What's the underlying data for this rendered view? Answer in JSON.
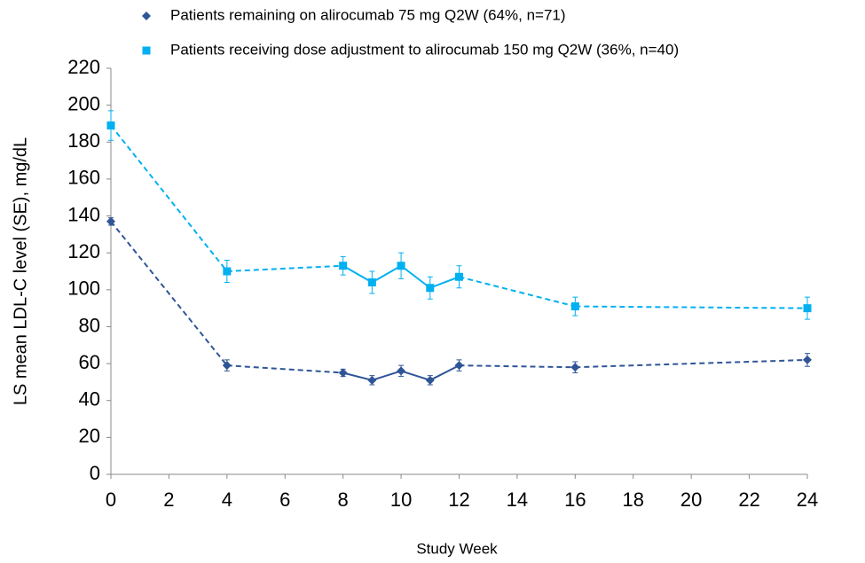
{
  "chart_data": {
    "type": "line",
    "legend": [
      {
        "name": "Patients remaining on alirocumab 75 mg Q2W (64%, n=71)"
      },
      {
        "name": "Patients receiving dose adjustment to alirocumab 150 mg Q2W (36%, n=40)"
      }
    ],
    "x": [
      0,
      4,
      8,
      9,
      10,
      11,
      12,
      16,
      24
    ],
    "series": [
      {
        "name": "Patients remaining on alirocumab 75 mg Q2W (64%, n=71)",
        "color": "#2f5597",
        "marker": "diamond",
        "values": [
          137,
          59,
          55,
          51,
          56,
          51,
          59,
          58,
          62
        ],
        "errors": [
          2,
          3,
          2,
          2.5,
          3,
          2.5,
          3,
          3,
          3.5
        ],
        "segment_styles": [
          "dashed",
          "dashed",
          "solid",
          "solid",
          "solid",
          "solid",
          "dashed",
          "dashed"
        ]
      },
      {
        "name": "Patients receiving dose adjustment to alirocumab 150 mg Q2W (36%, n=40)",
        "color": "#00b0f0",
        "marker": "square",
        "values": [
          189,
          110,
          113,
          104,
          113,
          101,
          107,
          91,
          90
        ],
        "errors": [
          8,
          6,
          5,
          6,
          7,
          6,
          6,
          5,
          6
        ],
        "segment_styles": [
          "dashed",
          "dashed",
          "solid",
          "solid",
          "solid",
          "solid",
          "dashed",
          "dashed"
        ]
      }
    ],
    "xlabel": "Study Week",
    "ylabel": "LS mean LDL-C level (SE), mg/dL",
    "xlim": [
      0,
      24
    ],
    "xticks": [
      0,
      2,
      4,
      6,
      8,
      10,
      12,
      14,
      16,
      18,
      20,
      22,
      24
    ],
    "ylim": [
      0,
      220
    ],
    "yticks": [
      0,
      20,
      40,
      60,
      80,
      100,
      120,
      140,
      160,
      180,
      200,
      220
    ],
    "grid": false
  }
}
